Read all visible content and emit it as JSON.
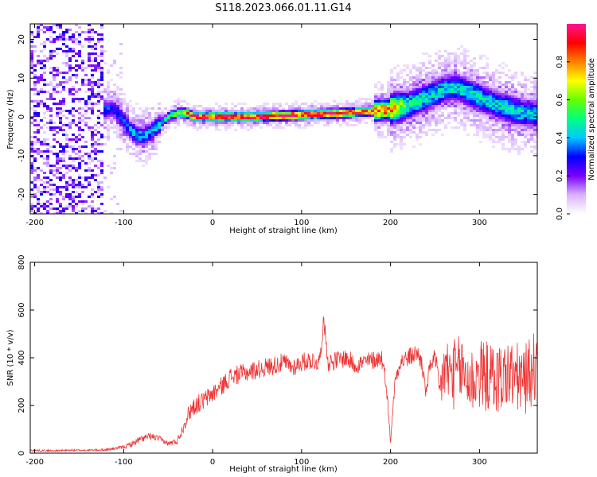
{
  "title": "S118.2023.066.01.11.G14",
  "chart_data": [
    {
      "type": "heatmap",
      "title": "S118.2023.066.01.11.G14",
      "xlabel": "Height of straight line (km)",
      "ylabel": "Frequency (Hz)",
      "xlim": [
        -205,
        365
      ],
      "ylim": [
        -25,
        24
      ],
      "xticks": [
        -200,
        -100,
        0,
        100,
        200,
        300
      ],
      "yticks": [
        -20,
        -10,
        0,
        10,
        20
      ],
      "grid": false,
      "colorbar": {
        "label": "Normalized spectral amplitude",
        "range": [
          0,
          1
        ],
        "ticks": [
          "0.0",
          "0.2",
          "0.4",
          "0.6",
          "0.8"
        ],
        "colors": [
          "#ffffff",
          "#d9b3ff",
          "#7a00ff",
          "#0000ff",
          "#00c8ff",
          "#00ff80",
          "#66ff00",
          "#ffff00",
          "#ff8000",
          "#ff0000",
          "#ff1493"
        ]
      },
      "ridge": {
        "x": [
          -150,
          -140,
          -130,
          -120,
          -110,
          -100,
          -90,
          -80,
          -70,
          -60,
          -50,
          -40,
          -30,
          -20,
          0,
          50,
          100,
          150,
          180,
          200,
          220,
          240,
          260,
          270,
          280,
          300,
          320,
          340,
          365
        ],
        "freq": [
          0,
          0,
          1,
          2,
          2,
          -1,
          -4,
          -5,
          -4,
          -2,
          0,
          1,
          1,
          0,
          0,
          0,
          0.5,
          1,
          1.5,
          2,
          3,
          5,
          7,
          7.5,
          7,
          5,
          3,
          1.5,
          0.5
        ],
        "amplitude": [
          0.3,
          0.35,
          0.35,
          0.35,
          0.3,
          0.35,
          0.4,
          0.4,
          0.4,
          0.4,
          0.55,
          0.65,
          0.8,
          0.95,
          1.0,
          1.0,
          0.95,
          0.95,
          0.9,
          0.85,
          0.5,
          0.45,
          0.45,
          0.45,
          0.45,
          0.45,
          0.45,
          0.45,
          0.4
        ]
      }
    },
    {
      "type": "line",
      "xlabel": "Height of straight line (km)",
      "ylabel": "SNR (10 * v/v)",
      "xlim": [
        -205,
        365
      ],
      "ylim": [
        0,
        800
      ],
      "xticks": [
        -200,
        -100,
        0,
        100,
        200,
        300
      ],
      "yticks": [
        0,
        200,
        400,
        600,
        800
      ],
      "grid": false,
      "series": [
        {
          "color": "#ee3333",
          "x": [
            -205,
            -180,
            -160,
            -140,
            -120,
            -100,
            -90,
            -80,
            -70,
            -60,
            -50,
            -40,
            -35,
            -30,
            -25,
            -20,
            -10,
            0,
            10,
            20,
            30,
            40,
            50,
            60,
            70,
            80,
            90,
            100,
            110,
            120,
            125,
            130,
            140,
            150,
            160,
            170,
            180,
            190,
            195,
            200,
            205,
            210,
            220,
            230,
            235,
            240,
            245,
            250,
            255,
            260,
            270,
            280,
            290,
            300,
            310,
            320,
            330,
            340,
            350,
            365
          ],
          "y": [
            12,
            10,
            12,
            12,
            14,
            25,
            40,
            60,
            70,
            60,
            40,
            50,
            90,
            140,
            180,
            200,
            220,
            250,
            280,
            320,
            330,
            340,
            350,
            360,
            370,
            380,
            360,
            380,
            390,
            380,
            560,
            380,
            390,
            400,
            370,
            380,
            390,
            400,
            300,
            50,
            300,
            380,
            400,
            420,
            380,
            250,
            380,
            400,
            250,
            350,
            330,
            350,
            300,
            330,
            320,
            310,
            330,
            320,
            300,
            380
          ],
          "spread": [
            8,
            8,
            8,
            8,
            10,
            15,
            25,
            30,
            30,
            25,
            20,
            30,
            40,
            60,
            80,
            80,
            80,
            80,
            80,
            80,
            80,
            80,
            80,
            80,
            80,
            80,
            80,
            80,
            80,
            80,
            60,
            80,
            80,
            80,
            80,
            80,
            80,
            80,
            60,
            20,
            60,
            80,
            80,
            80,
            80,
            60,
            80,
            80,
            150,
            280,
            300,
            300,
            300,
            300,
            300,
            300,
            300,
            300,
            300,
            300
          ]
        }
      ]
    }
  ]
}
